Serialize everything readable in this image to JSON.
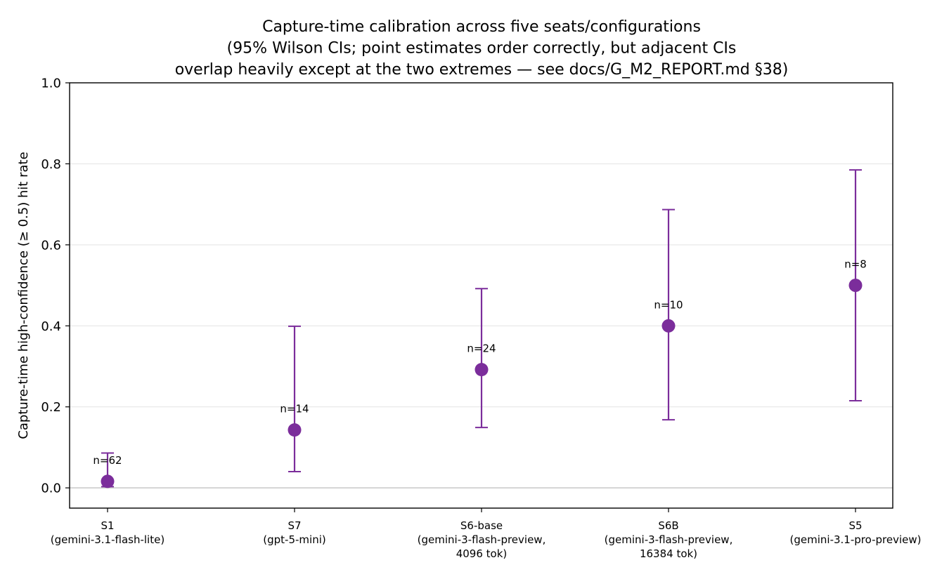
{
  "chart_data": {
    "type": "scatter",
    "title_lines": [
      "Capture-time calibration across five seats/configurations",
      "(95% Wilson CIs; point estimates order correctly, but adjacent CIs",
      "overlap heavily except at the two extremes — see docs/G_M2_REPORT.md §38)"
    ],
    "ylabel": "Capture-time high-confidence (≥ 0.5) hit rate",
    "ylim": [
      -0.05,
      1.0
    ],
    "yticks": [
      0.0,
      0.2,
      0.4,
      0.6,
      0.8,
      1.0
    ],
    "ytick_labels": [
      "0.0",
      "0.2",
      "0.4",
      "0.6",
      "0.8",
      "1.0"
    ],
    "grid": "horizontal",
    "color": "#7b2d9b",
    "points": [
      {
        "seat": "S1",
        "config_lines": [
          "(gemini-3.1-flash-lite)"
        ],
        "value": 0.016,
        "ci_low": 0.003,
        "ci_high": 0.086,
        "n": 62,
        "n_label": "n=62"
      },
      {
        "seat": "S7",
        "config_lines": [
          "(gpt-5-mini)"
        ],
        "value": 0.143,
        "ci_low": 0.04,
        "ci_high": 0.399,
        "n": 14,
        "n_label": "n=14"
      },
      {
        "seat": "S6-base",
        "config_lines": [
          "(gemini-3-flash-preview,",
          "4096 tok)"
        ],
        "value": 0.292,
        "ci_low": 0.149,
        "ci_high": 0.492,
        "n": 24,
        "n_label": "n=24"
      },
      {
        "seat": "S6B",
        "config_lines": [
          "(gemini-3-flash-preview,",
          "16384 tok)"
        ],
        "value": 0.4,
        "ci_low": 0.168,
        "ci_high": 0.687,
        "n": 10,
        "n_label": "n=10"
      },
      {
        "seat": "S5",
        "config_lines": [
          "(gemini-3.1-pro-preview)"
        ],
        "value": 0.5,
        "ci_low": 0.215,
        "ci_high": 0.785,
        "n": 8,
        "n_label": "n=8"
      }
    ]
  }
}
